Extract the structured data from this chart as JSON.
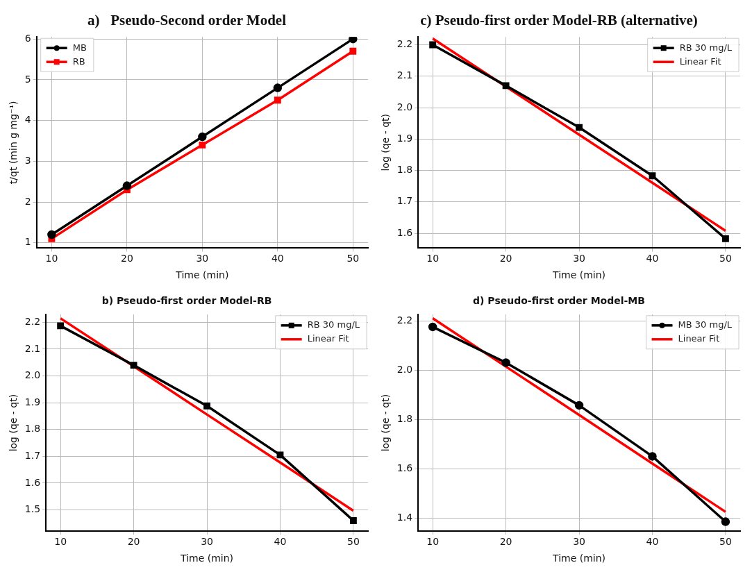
{
  "chart_data": [
    {
      "type": "line",
      "title": "a)   Pseudo-Second order Model",
      "xlabel": "Time (min)",
      "ylabel": "t/qt (min g mg⁻¹)",
      "x": [
        10,
        20,
        30,
        40,
        50
      ],
      "xlim": [
        8,
        52
      ],
      "xticks": [
        10,
        20,
        30,
        40,
        50
      ],
      "ylim": [
        0.87,
        6.05
      ],
      "yticks": [
        1,
        2,
        3,
        4,
        5,
        6
      ],
      "grid": true,
      "legend": "top left",
      "line_style": "solid",
      "series": [
        {
          "name": "MB",
          "color": "#000000",
          "marker": "circle",
          "values": [
            1.2,
            2.4,
            3.6,
            4.8,
            6.0
          ]
        },
        {
          "name": "RB",
          "color": "#ff0000",
          "marker": "square",
          "values": [
            1.1,
            2.3,
            3.4,
            4.5,
            5.7
          ]
        }
      ]
    },
    {
      "type": "line",
      "title": "c) Pseudo-first order Model-RB (alternative)",
      "xlabel": "Time (min)",
      "ylabel": "log (qe - qt)",
      "x": [
        10,
        20,
        30,
        40,
        50
      ],
      "xlim": [
        8,
        52
      ],
      "xticks": [
        10,
        20,
        30,
        40,
        50
      ],
      "ylim": [
        1.553,
        2.225
      ],
      "yticks": [
        {
          "value": 1.6,
          "label": "1.6"
        },
        {
          "value": 1.7,
          "label": "1.7"
        },
        {
          "value": 1.8,
          "label": "1.8"
        },
        {
          "value": 1.9,
          "label": "1.9"
        },
        {
          "value": 2.0,
          "label": "2.0"
        },
        {
          "value": 2.1,
          "label": "2.1"
        },
        {
          "value": 2.2,
          "label": "2.2"
        }
      ],
      "grid": true,
      "legend": "top right",
      "line_style": "solid",
      "series": [
        {
          "name": "RB 30 mg/L",
          "color": "#000000",
          "marker": "square",
          "values": [
            2.2,
            2.07,
            1.937,
            1.783,
            1.583
          ]
        },
        {
          "name": "Linear Fit",
          "color": "#ff0000",
          "marker": "none",
          "values": [
            2.22,
            2.067,
            1.914,
            1.761,
            1.608
          ]
        }
      ]
    },
    {
      "type": "line",
      "title": "b) Pseudo-first order Model-RB",
      "xlabel": "Time (min)",
      "ylabel": "log (qe - qt)",
      "x": [
        10,
        20,
        30,
        40,
        50
      ],
      "xlim": [
        8,
        52
      ],
      "xticks": [
        10,
        20,
        30,
        40,
        50
      ],
      "ylim": [
        1.42,
        2.23
      ],
      "yticks": [
        {
          "value": 1.5,
          "label": "1.5"
        },
        {
          "value": 1.6,
          "label": "1.6"
        },
        {
          "value": 1.7,
          "label": "1.7"
        },
        {
          "value": 1.8,
          "label": "1.8"
        },
        {
          "value": 1.9,
          "label": "1.9"
        },
        {
          "value": 2.0,
          "label": "2.0"
        },
        {
          "value": 2.1,
          "label": "2.1"
        },
        {
          "value": 2.2,
          "label": "2.2"
        }
      ],
      "grid": true,
      "legend": "top right",
      "line_style": "solid",
      "series": [
        {
          "name": "RB 30 mg/L",
          "color": "#000000",
          "marker": "square",
          "values": [
            2.187,
            2.04,
            1.888,
            1.705,
            1.46
          ]
        },
        {
          "name": "Linear Fit",
          "color": "#ff0000",
          "marker": "none",
          "values": [
            2.215,
            2.036,
            1.856,
            1.677,
            1.497
          ]
        }
      ]
    },
    {
      "type": "line",
      "title": "d) Pseudo-first order Model-MB",
      "xlabel": "Time (min)",
      "ylabel": "log (qe - qt)",
      "x": [
        10,
        20,
        30,
        40,
        50
      ],
      "xlim": [
        8,
        52
      ],
      "xticks": [
        10,
        20,
        30,
        40,
        50
      ],
      "ylim": [
        1.346,
        2.226
      ],
      "yticks": [
        {
          "value": 1.4,
          "label": "1.4"
        },
        {
          "value": 1.6,
          "label": "1.6"
        },
        {
          "value": 1.8,
          "label": "1.8"
        },
        {
          "value": 2.0,
          "label": "2.0"
        },
        {
          "value": 2.2,
          "label": "2.2"
        }
      ],
      "grid": true,
      "legend": "top right",
      "line_style": "solid",
      "series": [
        {
          "name": "MB 30 mg/L",
          "color": "#000000",
          "marker": "circle",
          "values": [
            2.175,
            2.03,
            1.857,
            1.65,
            1.385
          ]
        },
        {
          "name": "Linear Fit",
          "color": "#ff0000",
          "marker": "none",
          "values": [
            2.21,
            2.014,
            1.818,
            1.621,
            1.425
          ]
        }
      ]
    }
  ]
}
